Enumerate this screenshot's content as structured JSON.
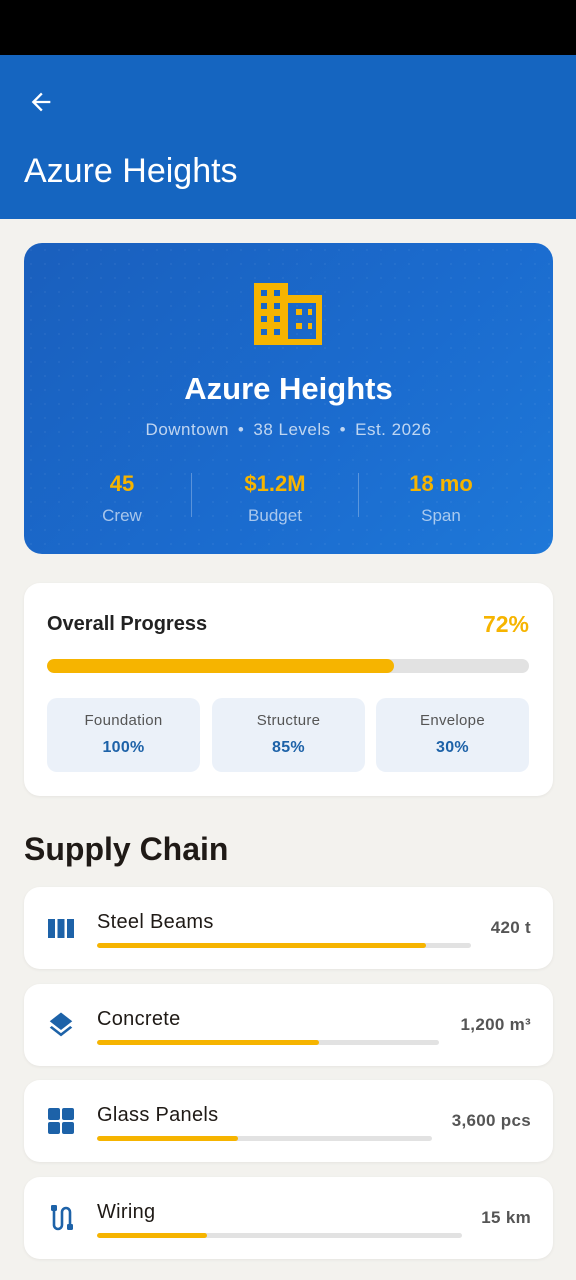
{
  "app_bar": {
    "title": "Azure Heights",
    "back_icon": "arrow-left-icon"
  },
  "colors": {
    "primary": "#1565c0",
    "accent": "#f6b400",
    "phase_text": "#1d62a8",
    "background": "#f3f2ee"
  },
  "project": {
    "name": "Azure Heights",
    "icon": "building-icon",
    "location": "Downtown",
    "levels": "38 Levels",
    "established": "Est. 2026",
    "separator": "•",
    "stats": [
      {
        "value": "45",
        "label": "Crew"
      },
      {
        "value": "$1.2M",
        "label": "Budget"
      },
      {
        "value": "18 mo",
        "label": "Span"
      }
    ]
  },
  "progress": {
    "title": "Overall Progress",
    "percent_label": "72%",
    "percent": 72,
    "phases": [
      {
        "name": "Foundation",
        "value": "100%"
      },
      {
        "name": "Structure",
        "value": "85%"
      },
      {
        "name": "Envelope",
        "value": "30%"
      }
    ]
  },
  "supply_chain": {
    "title": "Supply Chain",
    "items": [
      {
        "name": "Steel Beams",
        "quantity": "420 t",
        "icon": "columns-icon",
        "fill": 0.88
      },
      {
        "name": "Concrete",
        "quantity": "1,200 m³",
        "icon": "layers-icon",
        "fill": 0.65
      },
      {
        "name": "Glass Panels",
        "quantity": "3,600 pcs",
        "icon": "grid-icon",
        "fill": 0.42
      },
      {
        "name": "Wiring",
        "quantity": "15 km",
        "icon": "cable-icon",
        "fill": 0.3
      }
    ]
  }
}
